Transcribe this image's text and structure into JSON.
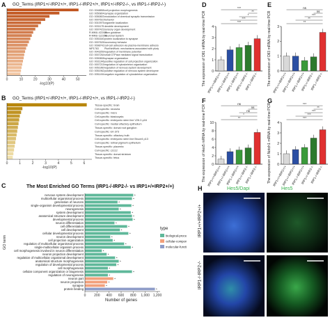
{
  "panel_a": {
    "label": "A",
    "title": "GO_Terms (IRP1+/-IRP2+/+, IRP1-/-IRP2+/+, IRP1+/-IRP2-/-, vs IRP1-/-IRP2-/-)",
    "xlabel": "-log10(P)",
    "ticks": [
      "0",
      "10",
      "20",
      "30",
      "40",
      "50"
    ],
    "colors": {
      "bar_dark": "#c0541e",
      "bar_light": "#f3c7a3"
    },
    "terms": [
      {
        "id": "GO: 0048858",
        "name": "cell projection morphogenesis",
        "value": 50.5
      },
      {
        "id": "GO: 0050804",
        "name": "synapse organization",
        "value": 37
      },
      {
        "id": "GO: 0050803",
        "name": "modulation of chemical synaptic transmission",
        "value": 30
      },
      {
        "id": "GO: 0007610",
        "name": "behavior",
        "value": 27
      },
      {
        "id": "GO: 0010975",
        "name": "organelle localization",
        "value": 24
      },
      {
        "id": "GO: 0031175",
        "name": "dendrite development",
        "value": 22
      },
      {
        "id": "GO: 0007423",
        "name": "sensory organ development",
        "value": 20
      },
      {
        "id": "R-MMU-422475",
        "name": "axon guidance",
        "value": 18.5
      },
      {
        "id": "R-MMU-112316",
        "name": "Neuronal System",
        "value": 17.5
      },
      {
        "id": "GO: 0051640",
        "name": "protein localization to synapse",
        "value": 16.5
      },
      {
        "id": "GO: 0007626",
        "name": "locomotory behavior",
        "value": 15.5
      },
      {
        "id": "GO: 0098742",
        "name": "cell-cell adhesion via plasma-membrane adhesion molecules",
        "value": 14.5
      },
      {
        "id": "WP1763",
        "name": "PluriNetWork: mechanisms associated with pluripotency",
        "value": 13.5
      },
      {
        "id": "GO: 0043269",
        "name": "regulation of membrane potential",
        "value": 12.8
      },
      {
        "id": "GO: 0007264",
        "name": "small GTPase mediated signal transduction",
        "value": 12.2
      },
      {
        "id": "GO: 0050808",
        "name": "synapse organization",
        "value": 11.8
      },
      {
        "id": "GO: 0031346",
        "name": "positive regulation of cell projection organization",
        "value": 11.3
      },
      {
        "id": "GO: 0007215",
        "name": "regulation of cytoskeleton organization",
        "value": 10.8
      },
      {
        "id": "GO: 0051960",
        "name": "regulation of nervous system development",
        "value": 10.3
      },
      {
        "id": "GO: 0051962",
        "name": "positive regulation of nervous system development",
        "value": 9.9
      },
      {
        "id": "GO: 0051494",
        "name": "negative regulation of cytoskeleton organization",
        "value": 9.5
      }
    ]
  },
  "panel_b": {
    "label": "B",
    "title": "GO_Terms (IRP1+/-IRP2+/+, IRP1-/-IRP2+/+, vs IRP1-/-IRP2-/-)",
    "xlabel": "-log10(P)",
    "ticks": [
      "0",
      "1",
      "2",
      "3",
      "4",
      "5",
      "6"
    ],
    "colors": {
      "bar_dark": "#b8860b",
      "bar_light": "#f1e2b0"
    },
    "terms": [
      {
        "name": "Tissue-specific: brain",
        "value": 6.2
      },
      {
        "name": "Cell-specific: neurulia",
        "value": 1.2
      },
      {
        "name": "Cell-specific: micro",
        "value": 1.1
      },
      {
        "name": "Cell-specific: blastocysts",
        "value": 1.0
      },
      {
        "name": "Cell-specific: embryonic stem line V26.2-p16",
        "value": 0.95
      },
      {
        "name": "Cell-specific: medial olfactory epithelium",
        "value": 0.9
      },
      {
        "name": "Tissue-specific: dorsal root ganglion",
        "value": 0.85
      },
      {
        "name": "Cell-specific: ioh 373",
        "value": 0.8
      },
      {
        "name": "Tissue-specific: olfactory bulb",
        "value": 0.75
      },
      {
        "name": "Cell-specific: embryonic stem line Bruce4 p13",
        "value": 0.7
      },
      {
        "name": "Cell-specific: retinal pigment epithelium",
        "value": 0.65
      },
      {
        "name": "Tissue-specific: placenta",
        "value": 0.6
      },
      {
        "name": "Cell-specific: c2c12",
        "value": 0.55
      },
      {
        "name": "Tissue-specific: dorsal striatum",
        "value": 0.5
      },
      {
        "name": "Tissue-specific: fetus",
        "value": 0.45
      }
    ]
  },
  "panel_c": {
    "label": "C",
    "title": "The Most Enriched GO Terms (IRP1-/-IRP2-/- vs IRP1+/+IRP2+/+)",
    "ylabel": "GO term",
    "xlabel": "Number of genes",
    "ticks": [
      "0",
      "200",
      "400",
      "600",
      "800",
      "1,000",
      "1,200"
    ],
    "legend_title": "type",
    "legend": [
      {
        "label": "biological-process",
        "color": "#5fb89a"
      },
      {
        "label": "cellular-component",
        "color": "#f2a07b"
      },
      {
        "label": "molecular-function",
        "color": "#8e9cc8"
      }
    ],
    "terms": [
      {
        "name": "nervous system development",
        "value": 800,
        "type": 0
      },
      {
        "name": "multicellular organismal process",
        "value": 780,
        "type": 0
      },
      {
        "name": "generation of neurons",
        "value": 540,
        "type": 0
      },
      {
        "name": "single-organism developmental process",
        "value": 770,
        "type": 0
      },
      {
        "name": "neurogenesis",
        "value": 560,
        "type": 0
      },
      {
        "name": "system development",
        "value": 760,
        "type": 0
      },
      {
        "name": "anatomical structure development",
        "value": 780,
        "type": 0
      },
      {
        "name": "developmental process",
        "value": 790,
        "type": 0
      },
      {
        "name": "neuron differentiation",
        "value": 490,
        "type": 0
      },
      {
        "name": "cell differentiation",
        "value": 700,
        "type": 0
      },
      {
        "name": "cell development",
        "value": 580,
        "type": 0
      },
      {
        "name": "cellular developmental process",
        "value": 720,
        "type": 0
      },
      {
        "name": "neuron development",
        "value": 420,
        "type": 0
      },
      {
        "name": "cell projection organization",
        "value": 460,
        "type": 0
      },
      {
        "name": "regulation of multicellular organismal process",
        "value": 650,
        "type": 0
      },
      {
        "name": "single-multicellular organism process",
        "value": 760,
        "type": 0
      },
      {
        "name": "cell morphogenesis involved in neuron differentiation",
        "value": 280,
        "type": 0
      },
      {
        "name": "neuron projection development",
        "value": 360,
        "type": 0
      },
      {
        "name": "regulation of multicellular organismal development",
        "value": 500,
        "type": 0
      },
      {
        "name": "anatomical structure morphogenesis",
        "value": 560,
        "type": 0
      },
      {
        "name": "regulation of developmental process",
        "value": 520,
        "type": 0
      },
      {
        "name": "cell morphogenesis",
        "value": 380,
        "type": 0
      },
      {
        "name": "cellular component organization or biogenesis",
        "value": 780,
        "type": 0
      },
      {
        "name": "regulation of neurogenesis",
        "value": 380,
        "type": 0
      },
      {
        "name": "neuron part",
        "value": 470,
        "type": 1
      },
      {
        "name": "neuron projection",
        "value": 370,
        "type": 1
      },
      {
        "name": "synapse",
        "value": 330,
        "type": 1
      },
      {
        "name": "protein binding",
        "value": 1160,
        "type": 2
      }
    ],
    "star": "*"
  },
  "bar_panels": [
    {
      "label": "D",
      "ylabel": "The expression of Dll1 mRNA by real-time PCR",
      "ymax": 4,
      "ticks": [
        "0",
        "1",
        "2",
        "3",
        "4"
      ],
      "values": [
        1.0,
        1.9,
        2.1,
        2.3,
        2.9
      ],
      "sig": [
        "***",
        "***",
        "*",
        "**",
        "***"
      ]
    },
    {
      "label": "E",
      "ylabel": "The expression of Dll3 mRNA by real-time PCR",
      "ymax": 3,
      "ticks": [
        "0",
        "1",
        "2",
        "3"
      ],
      "values": [
        1.0,
        1.0,
        0.7,
        0.95,
        2.6
      ],
      "sig": [
        "**",
        "**",
        "***",
        "ns",
        "ns"
      ]
    },
    {
      "label": "F",
      "ylabel": "The expression of Hes5 mRNA by real-time PCR",
      "ymax": 10,
      "ticks": [
        "0",
        "2",
        "4",
        "6",
        "8",
        "10"
      ],
      "values": [
        1.2,
        3.0,
        3.4,
        3.9,
        7.6
      ],
      "sig": [
        "**",
        "*",
        "ns",
        "ns",
        "ns"
      ]
    },
    {
      "label": "G",
      "ylabel": "The expression of Notch1 mRNA by real-time PCR",
      "ymax": 4,
      "ticks": [
        "0",
        "1",
        "2",
        "3",
        "4"
      ],
      "values": [
        1.0,
        1.4,
        1.6,
        2.5,
        3.3
      ],
      "sig": [
        "***",
        "***",
        "***",
        "**",
        "***"
      ]
    }
  ],
  "bar_categories": [
    "IRP1+/+IRP2+/+",
    "IRP1+/-IRP2+/+",
    "IRP1-/-IRP2+/+",
    "IRP1+/-IRP2-/-",
    "IRP1-/-IRP2-/-"
  ],
  "bar_colors": [
    "#d9d9d9",
    "#2a4ea3",
    "#3a9a3a",
    "#2d7a2d",
    "#e03030"
  ],
  "panel_h": {
    "label": "H",
    "col1": "Hes5/Dapi",
    "col2": "Hes5",
    "row1": "IRP1+/+IRP2+/+",
    "row2": "IRP1-/-IRP2-/-"
  }
}
